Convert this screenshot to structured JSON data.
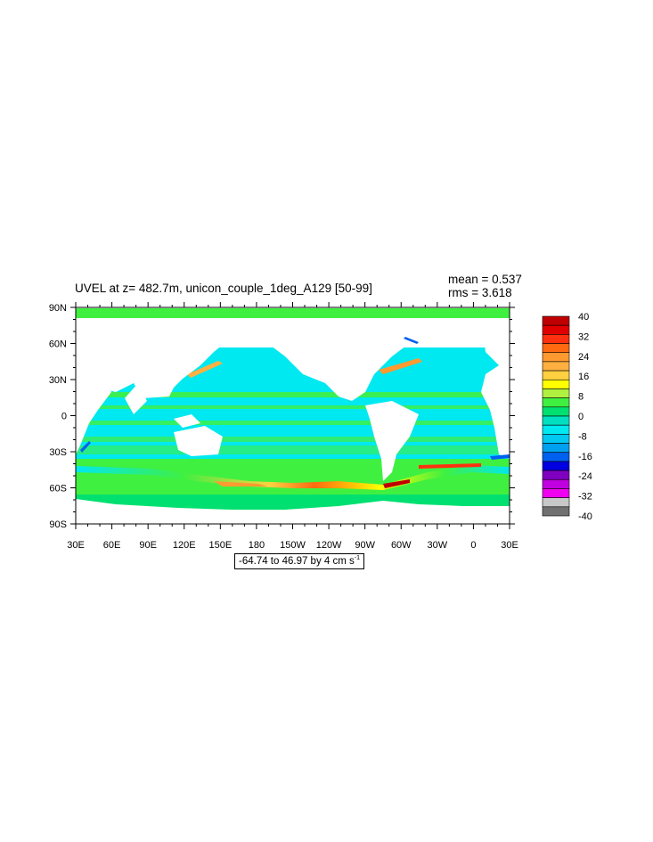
{
  "title": "UVEL at z= 482.7m, unicon_couple_1deg_A129 [50-99]",
  "stats": {
    "mean": "mean = 0.537",
    "rms": "rms = 3.618"
  },
  "range_label": {
    "text": "-64.74 to 46.97 by 4 cm s",
    "unit_exponent": "-1"
  },
  "map": {
    "projection": "cylindrical equidistant",
    "lon_range": [
      "30E",
      "30E"
    ],
    "lat_range": [
      "90S",
      "90N"
    ],
    "lat_ticks": [
      "90N",
      "60N",
      "30N",
      "0",
      "30S",
      "60S",
      "90S"
    ],
    "lon_ticks": [
      "30E",
      "60E",
      "90E",
      "120E",
      "150E",
      "180",
      "150W",
      "120W",
      "90W",
      "60W",
      "30W",
      "0",
      "30E"
    ],
    "land_color": "#ffffff"
  },
  "colorbar": {
    "labels": [
      "40",
      "32",
      "24",
      "16",
      "8",
      "0",
      "-8",
      "-16",
      "-24",
      "-32",
      "-40"
    ],
    "colors": [
      "#c00000",
      "#e00000",
      "#ff3010",
      "#ff6a10",
      "#ff9a30",
      "#ffb040",
      "#ffd040",
      "#ffff00",
      "#b0f040",
      "#40f040",
      "#00e070",
      "#00e0c0",
      "#00e8f0",
      "#00c8f0",
      "#00a0f0",
      "#0060f0",
      "#0000e0",
      "#8000c0",
      "#c000e0",
      "#f000f0",
      "#c8c8c8",
      "#707070"
    ]
  }
}
